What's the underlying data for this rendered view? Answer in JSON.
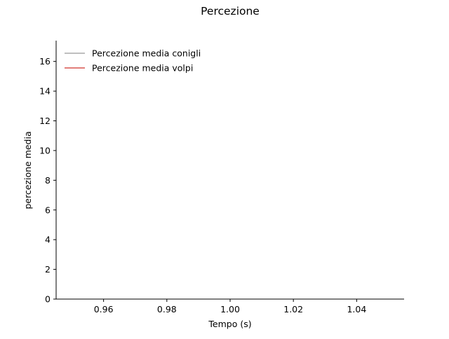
{
  "chart_data": {
    "type": "line",
    "title": "Percezione",
    "xlabel": "Tempo (s)",
    "ylabel": "percezione media",
    "xlim": [
      0.945,
      1.055
    ],
    "ylim": [
      0,
      17.4
    ],
    "xticks": [
      0.96,
      0.98,
      1.0,
      1.02,
      1.04
    ],
    "xtick_labels": [
      "0.96",
      "0.98",
      "1.00",
      "1.02",
      "1.04"
    ],
    "yticks": [
      0,
      2,
      4,
      6,
      8,
      10,
      12,
      14,
      16
    ],
    "ytick_labels": [
      "0",
      "2",
      "4",
      "6",
      "8",
      "10",
      "12",
      "14",
      "16"
    ],
    "grid": false,
    "legend_position": "top-left",
    "series": [
      {
        "name": "Percezione media conigli",
        "color": "#aaaaaa",
        "x": [],
        "y": []
      },
      {
        "name": "Percezione media volpi",
        "color": "#d9534f",
        "x": [],
        "y": []
      }
    ]
  }
}
